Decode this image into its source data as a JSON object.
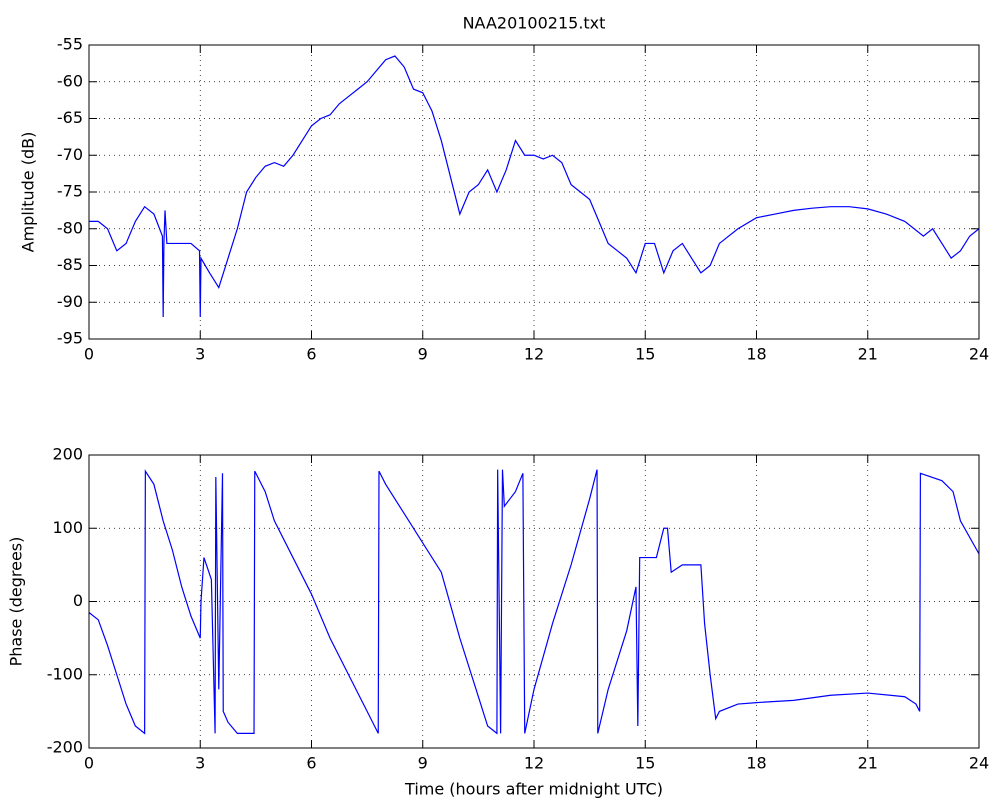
{
  "chart_data": [
    {
      "type": "line",
      "title": "NAA20100215.txt",
      "ylabel": "Amplitude (dB)",
      "xlim": [
        0,
        24
      ],
      "xticks": [
        0,
        3,
        6,
        9,
        12,
        15,
        18,
        21,
        24
      ],
      "ylim": [
        -95,
        -55
      ],
      "yticks": [
        -95,
        -90,
        -85,
        -80,
        -75,
        -70,
        -65,
        -60,
        -55
      ],
      "grid": true,
      "x": [
        0,
        0.25,
        0.5,
        0.75,
        1.0,
        1.25,
        1.5,
        1.75,
        1.98,
        2.0,
        2.02,
        2.05,
        2.1,
        2.25,
        2.5,
        2.75,
        2.98,
        3.0,
        3.02,
        3.25,
        3.5,
        3.75,
        4.0,
        4.25,
        4.5,
        4.75,
        5.0,
        5.25,
        5.5,
        5.75,
        6.0,
        6.25,
        6.5,
        6.75,
        7.0,
        7.25,
        7.5,
        7.75,
        8.0,
        8.25,
        8.5,
        8.75,
        9.0,
        9.25,
        9.5,
        9.75,
        10.0,
        10.25,
        10.5,
        10.75,
        11.0,
        11.25,
        11.5,
        11.75,
        12.0,
        12.25,
        12.5,
        12.75,
        13.0,
        13.25,
        13.5,
        13.75,
        14.0,
        14.25,
        14.5,
        14.75,
        15.0,
        15.25,
        15.5,
        15.75,
        16.0,
        16.25,
        16.5,
        16.75,
        17.0,
        17.5,
        18.0,
        18.5,
        19.0,
        19.5,
        20.0,
        20.5,
        21.0,
        21.5,
        22.0,
        22.5,
        22.75,
        23.0,
        23.25,
        23.5,
        23.75,
        24.0
      ],
      "series": [
        {
          "color": "#0000ff",
          "values": [
            -79,
            -79,
            -80,
            -83,
            -82,
            -79,
            -77,
            -78,
            -81,
            -92,
            -82,
            -77.5,
            -82,
            -82,
            -82,
            -82,
            -83,
            -92,
            -84,
            -86,
            -88,
            -84,
            -80,
            -75,
            -73,
            -71.5,
            -71,
            -71.5,
            -70,
            -68,
            -66,
            -65,
            -64.5,
            -63,
            -62,
            -61,
            -60,
            -58.5,
            -57,
            -56.5,
            -58,
            -61,
            -61.5,
            -64,
            -68,
            -73,
            -78,
            -75,
            -74,
            -72,
            -75,
            -72,
            -68,
            -70,
            -70,
            -70.5,
            -70,
            -71,
            -74,
            -75,
            -76,
            -79,
            -82,
            -83,
            -84,
            -86,
            -82,
            -82,
            -86,
            -83,
            -82,
            -84,
            -86,
            -85,
            -82,
            -80,
            -78.5,
            -78,
            -77.5,
            -77.2,
            -77,
            -77,
            -77.3,
            -78,
            -79,
            -81,
            -80,
            -82,
            -84,
            -83,
            -81,
            -80
          ]
        }
      ]
    },
    {
      "type": "line",
      "ylabel": "Phase (degrees)",
      "xlabel": "Time (hours after midnight UTC)",
      "xlim": [
        0,
        24
      ],
      "xticks": [
        0,
        3,
        6,
        9,
        12,
        15,
        18,
        21,
        24
      ],
      "ylim": [
        -200,
        200
      ],
      "yticks": [
        -200,
        -100,
        0,
        100,
        200
      ],
      "grid": true,
      "x": [
        0,
        0.25,
        0.5,
        0.75,
        1.0,
        1.25,
        1.5,
        1.52,
        1.75,
        2.0,
        2.25,
        2.5,
        2.75,
        3.0,
        3.02,
        3.1,
        3.3,
        3.4,
        3.42,
        3.5,
        3.6,
        3.62,
        3.75,
        4.0,
        4.3,
        4.45,
        4.47,
        4.75,
        5.0,
        5.5,
        6.0,
        6.5,
        7.0,
        7.5,
        7.8,
        7.82,
        8.0,
        8.5,
        9.0,
        9.5,
        10.0,
        10.5,
        10.75,
        11.0,
        11.02,
        11.1,
        11.15,
        11.2,
        11.5,
        11.7,
        11.75,
        12.0,
        12.5,
        13.0,
        13.5,
        13.7,
        13.72,
        14.0,
        14.5,
        14.75,
        14.8,
        14.85,
        15.0,
        15.3,
        15.5,
        15.6,
        15.7,
        16.0,
        16.5,
        16.6,
        16.75,
        16.9,
        17.0,
        17.5,
        18.0,
        19.0,
        20.0,
        21.0,
        22.0,
        22.3,
        22.4,
        22.42,
        23.0,
        23.3,
        23.5,
        24.0
      ],
      "series": [
        {
          "color": "#0000ff",
          "values": [
            -15,
            -25,
            -60,
            -100,
            -140,
            -170,
            -180,
            178,
            160,
            110,
            70,
            20,
            -20,
            -50,
            0,
            60,
            30,
            -180,
            170,
            -120,
            175,
            -150,
            -165,
            -180,
            -180,
            -180,
            178,
            150,
            110,
            60,
            10,
            -50,
            -100,
            -150,
            -180,
            178,
            160,
            120,
            80,
            40,
            -50,
            -130,
            -170,
            -180,
            180,
            -180,
            180,
            130,
            150,
            175,
            -180,
            -120,
            -30,
            50,
            140,
            180,
            -180,
            -120,
            -40,
            20,
            -170,
            60,
            60,
            60,
            100,
            100,
            40,
            50,
            50,
            -30,
            -100,
            -160,
            -150,
            -140,
            -138,
            -135,
            -128,
            -125,
            -130,
            -140,
            -150,
            175,
            165,
            150,
            110,
            65
          ]
        }
      ]
    }
  ]
}
